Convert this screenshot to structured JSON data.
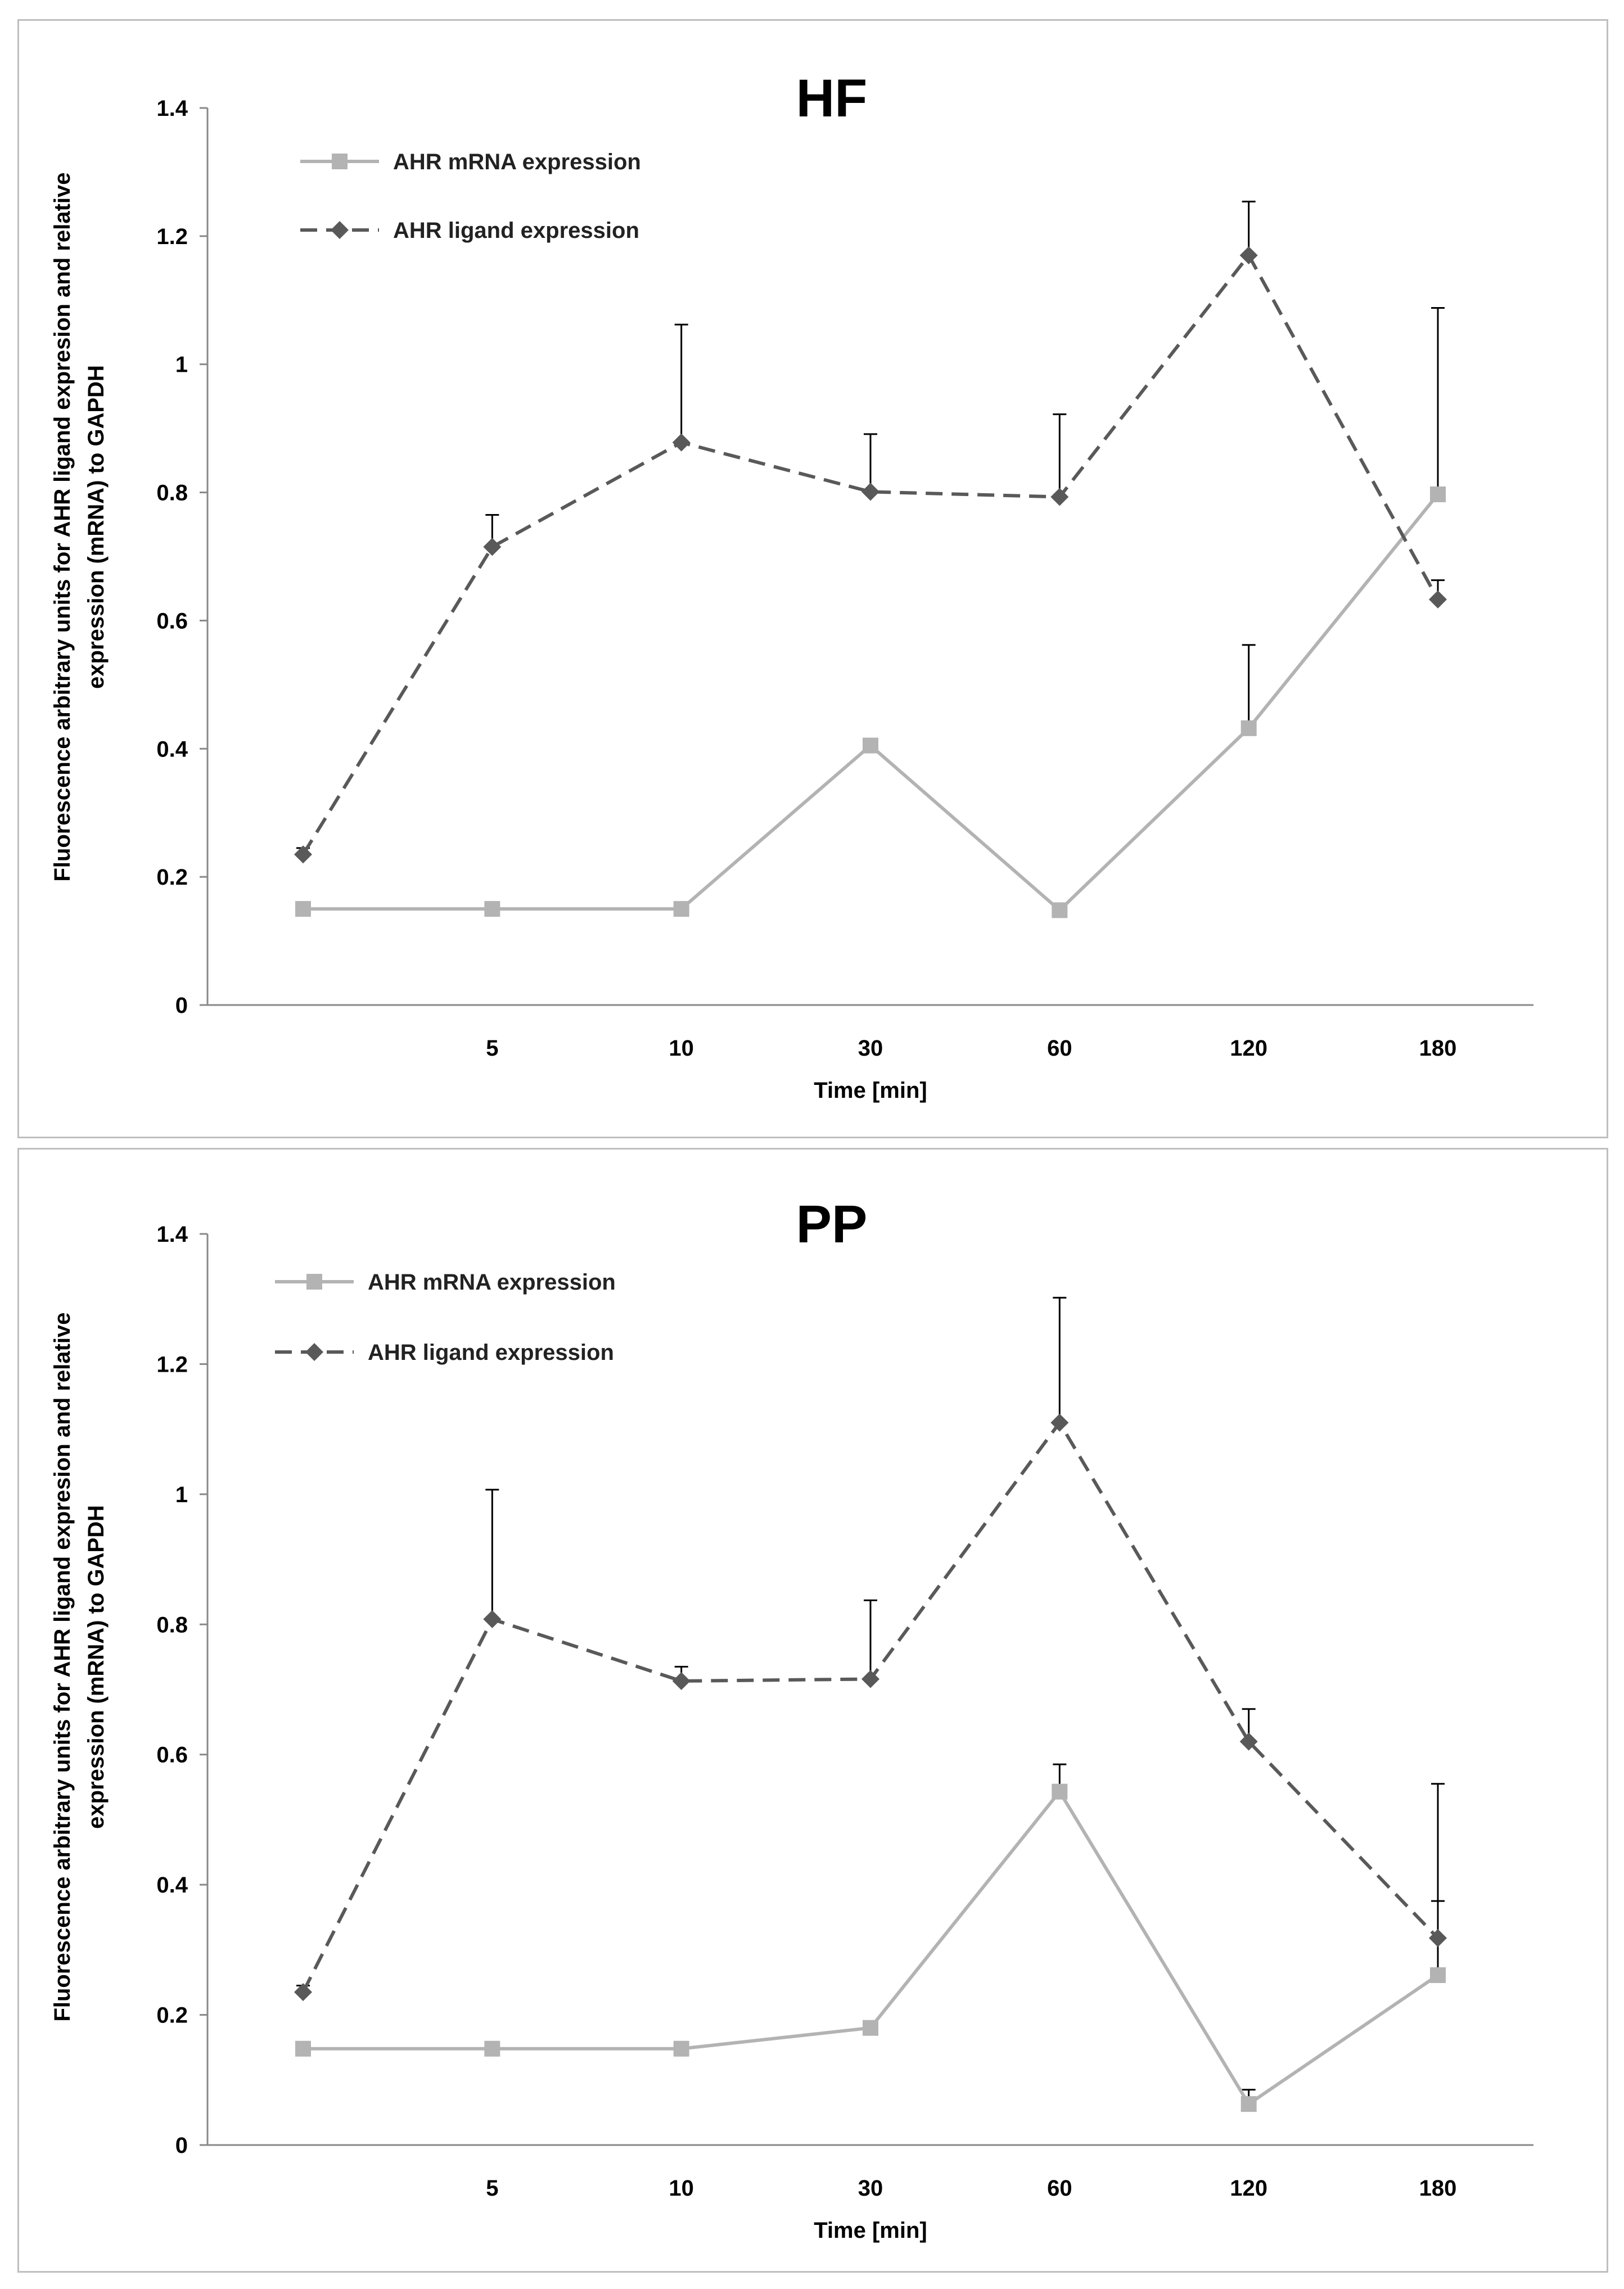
{
  "chart_data": [
    {
      "type": "line",
      "title": "HF",
      "xlabel": "Time [min]",
      "ylabel_line1": "Fluorescence arbitrary units for AHR ligand expresion and relative",
      "ylabel_line2": "expression (mRNA) to GAPDH",
      "categories": [
        "",
        "5",
        "10",
        "30",
        "60",
        "120",
        "180"
      ],
      "yticks": [
        "0",
        "0.2",
        "0.4",
        "0.6",
        "0.8",
        "1",
        "1.2",
        "1.4"
      ],
      "ylim": [
        0,
        1.4
      ],
      "legend_position": "top-left",
      "series": [
        {
          "name": "AHR mRNA expression",
          "marker": "square",
          "style": "solid",
          "color": "#b3b3b3",
          "values": [
            0.15,
            0.15,
            0.15,
            0.405,
            0.148,
            0.432,
            0.797
          ],
          "error_upper": [
            null,
            null,
            null,
            null,
            null,
            0.562,
            1.088
          ]
        },
        {
          "name": "AHR ligand expression",
          "marker": "diamond",
          "style": "dashed",
          "color": "#595959",
          "values": [
            0.235,
            0.715,
            0.878,
            0.801,
            0.793,
            1.17,
            0.633
          ],
          "error_upper": [
            0.245,
            0.765,
            1.062,
            0.891,
            0.922,
            1.254,
            0.663
          ]
        }
      ]
    },
    {
      "type": "line",
      "title": "PP",
      "xlabel": "Time [min]",
      "ylabel_line1": "Fluorescence arbitrary units for AHR ligand expresion and relative",
      "ylabel_line2": "expression (mRNA) to GAPDH",
      "categories": [
        "",
        "5",
        "10",
        "30",
        "60",
        "120",
        "180"
      ],
      "yticks": [
        "0",
        "0.2",
        "0.4",
        "0.6",
        "0.8",
        "1",
        "1.2",
        "1.4"
      ],
      "ylim": [
        0,
        1.4
      ],
      "legend_position": "top-left",
      "series": [
        {
          "name": "AHR mRNA expression",
          "marker": "square",
          "style": "solid",
          "color": "#b3b3b3",
          "values": [
            0.148,
            0.148,
            0.148,
            0.18,
            0.543,
            0.063,
            0.261
          ],
          "error_upper": [
            null,
            null,
            null,
            null,
            0.585,
            0.085,
            0.375
          ]
        },
        {
          "name": "AHR ligand expression",
          "marker": "diamond",
          "style": "dashed",
          "color": "#595959",
          "values": [
            0.235,
            0.808,
            0.713,
            0.716,
            1.11,
            0.62,
            0.318
          ],
          "error_upper": [
            0.245,
            1.007,
            0.735,
            0.837,
            1.302,
            0.67,
            0.555
          ]
        }
      ]
    }
  ]
}
